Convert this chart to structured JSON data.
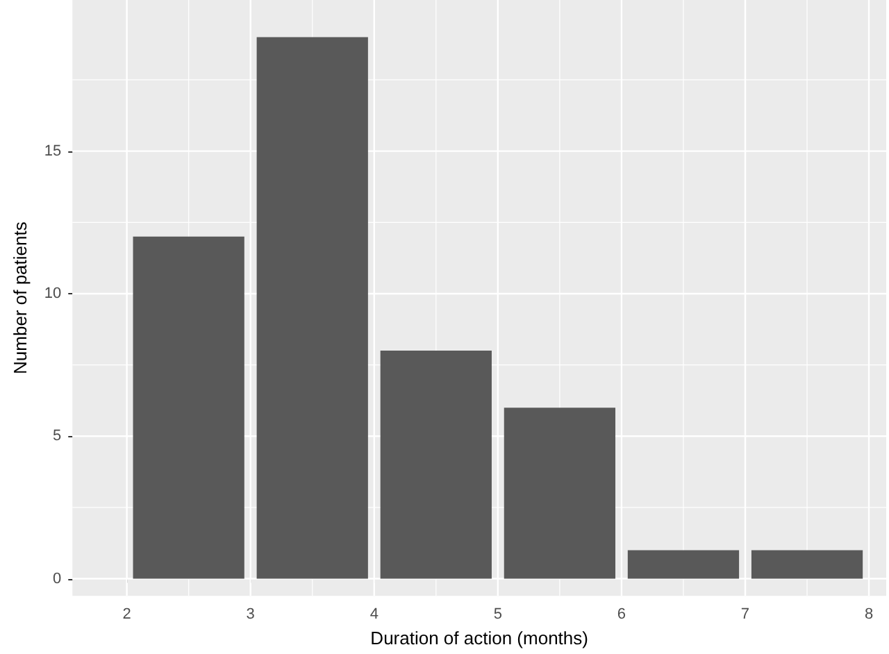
{
  "chart_data": {
    "type": "histogram",
    "xlabel": "Duration of action (months)",
    "ylabel": "Number of patients",
    "bins": [
      2,
      3,
      4,
      5,
      6,
      7,
      8
    ],
    "values": [
      12,
      19,
      8,
      6,
      1,
      1
    ],
    "color": "#595959",
    "xlim": [
      1.56,
      8.14
    ],
    "xticks": [
      2,
      3,
      4,
      5,
      6,
      7,
      8
    ],
    "ylim": [
      -0.6,
      20.3
    ],
    "yticks": [
      0,
      5,
      10,
      15
    ],
    "grid": true
  }
}
